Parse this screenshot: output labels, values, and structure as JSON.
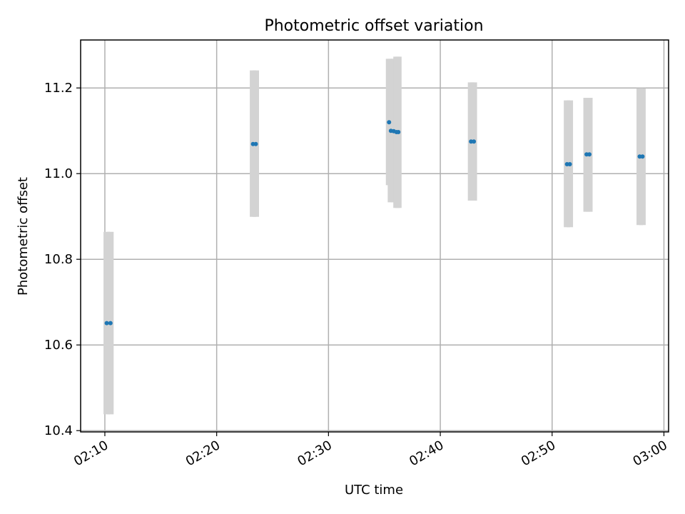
{
  "chart_data": {
    "type": "scatter",
    "title": "Photometric offset variation",
    "xlabel": "UTC time",
    "ylabel": "Photometric offset",
    "x_ticks": [
      "02:10",
      "02:20",
      "02:30",
      "02:40",
      "02:50",
      "03:00"
    ],
    "y_ticks": [
      "10.4",
      "10.6",
      "10.8",
      "11.0",
      "11.2"
    ],
    "xlim": [
      "02:07:50",
      "03:00:25"
    ],
    "ylim": [
      10.397,
      11.312
    ],
    "grid": true,
    "colors": {
      "point": "#1f77b4",
      "errorbar": "#d3d3d3",
      "grid": "#b0b0b0",
      "axes": "#000000"
    },
    "series": [
      {
        "points": [
          {
            "x": "02:10:10",
            "y": 10.651,
            "y_low": 10.438,
            "y_high": 10.864
          },
          {
            "x": "02:10:30",
            "y": 10.651,
            "y_low": 10.438,
            "y_high": 10.864
          },
          {
            "x": "02:23:15",
            "y": 11.069,
            "y_low": 10.899,
            "y_high": 11.241
          },
          {
            "x": "02:23:30",
            "y": 11.069,
            "y_low": 10.899,
            "y_high": 11.241
          },
          {
            "x": "02:35:25",
            "y": 11.12,
            "y_low": 10.973,
            "y_high": 11.268
          },
          {
            "x": "02:35:35",
            "y": 11.1,
            "y_low": 10.933,
            "y_high": 11.268
          },
          {
            "x": "02:35:50",
            "y": 11.099,
            "y_low": 10.933,
            "y_high": 11.268
          },
          {
            "x": "02:36:05",
            "y": 11.097,
            "y_low": 10.92,
            "y_high": 11.273
          },
          {
            "x": "02:36:15",
            "y": 11.097,
            "y_low": 10.92,
            "y_high": 11.273
          },
          {
            "x": "02:42:45",
            "y": 11.075,
            "y_low": 10.937,
            "y_high": 11.213
          },
          {
            "x": "02:43:00",
            "y": 11.075,
            "y_low": 10.937,
            "y_high": 11.213
          },
          {
            "x": "02:51:20",
            "y": 11.022,
            "y_low": 10.875,
            "y_high": 11.171
          },
          {
            "x": "02:51:35",
            "y": 11.022,
            "y_low": 10.875,
            "y_high": 11.171
          },
          {
            "x": "02:53:05",
            "y": 11.045,
            "y_low": 10.911,
            "y_high": 11.177
          },
          {
            "x": "02:53:20",
            "y": 11.045,
            "y_low": 10.911,
            "y_high": 11.177
          },
          {
            "x": "02:57:50",
            "y": 11.04,
            "y_low": 10.88,
            "y_high": 11.199
          },
          {
            "x": "02:58:05",
            "y": 11.04,
            "y_low": 10.88,
            "y_high": 11.199
          }
        ]
      }
    ]
  }
}
